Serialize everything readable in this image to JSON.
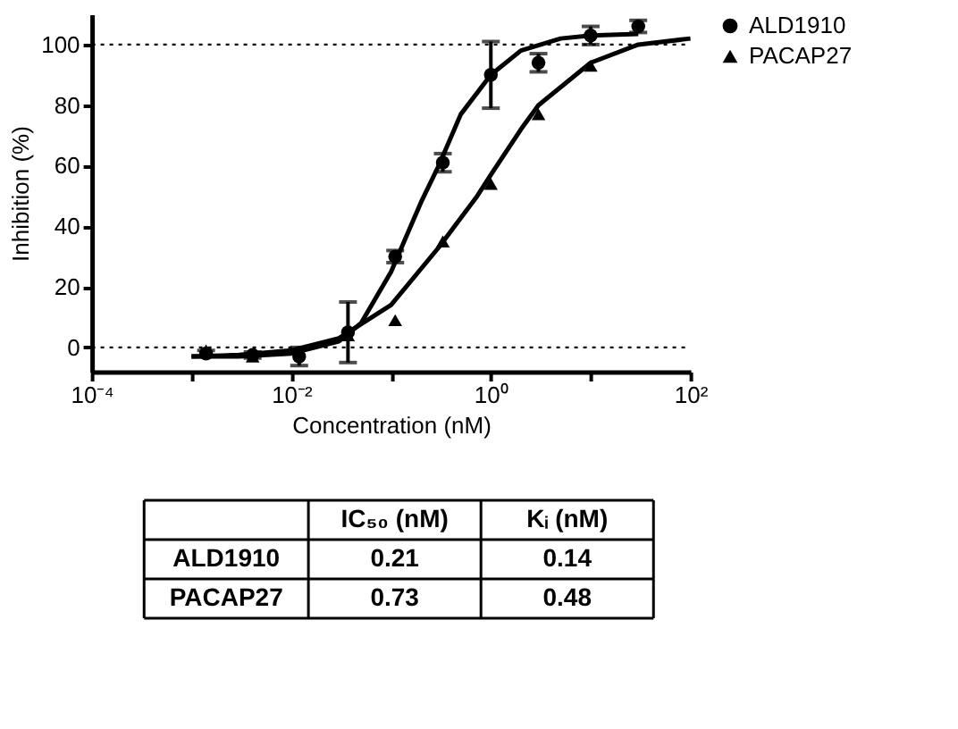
{
  "chart_data": {
    "type": "scatter",
    "xlabel": "Concentration (nM)",
    "ylabel": "Inhibition (%)",
    "log": "x",
    "xlim": [
      0.0001,
      100
    ],
    "xticks": [
      {
        "value": 0.0001,
        "label": "10⁻⁴"
      },
      {
        "value": 0.001,
        "label": null
      },
      {
        "value": 0.01,
        "label": "10⁻²"
      },
      {
        "value": 0.1,
        "label": null
      },
      {
        "value": 1,
        "label": "10⁰"
      },
      {
        "value": 10,
        "label": null
      },
      {
        "value": 100,
        "label": "10²"
      }
    ],
    "ylim": [
      -8,
      110
    ],
    "yticks": [
      0,
      20,
      40,
      60,
      80,
      100
    ],
    "grid": false,
    "legend": "right",
    "series": [
      {
        "name": "ALD1910",
        "marker": "circle",
        "color": "#000000",
        "x": [
          0.0014,
          0.0041,
          0.012,
          0.037,
          0.11,
          0.33,
          1,
          3,
          10,
          30
        ],
        "values": [
          -2,
          -2.5,
          -3,
          5,
          30,
          61,
          90,
          94,
          103,
          106
        ],
        "errors": [
          1,
          1,
          3,
          10,
          2,
          3,
          11,
          3,
          3,
          2
        ]
      },
      {
        "name": "PACAP27",
        "marker": "triangle",
        "color": "#000000",
        "x": [
          0.0014,
          0.0041,
          0.037,
          0.11,
          0.33,
          1,
          3,
          10
        ],
        "values": [
          -1,
          -3,
          4,
          9,
          35,
          54,
          77,
          93
        ]
      },
      {
        "type": "line",
        "color": "#000000",
        "line_style": "solid",
        "x": [
          0.001,
          0.003,
          0.01,
          0.03,
          0.05,
          0.1,
          0.2,
          0.3,
          0.5,
          1,
          2,
          5,
          10,
          30
        ],
        "values": [
          -3,
          -3,
          -2,
          2,
          8,
          25,
          48,
          60,
          77,
          90,
          98,
          102,
          103,
          103.5
        ]
      },
      {
        "type": "line",
        "color": "#000000",
        "line_style": "solid",
        "x": [
          0.001,
          0.003,
          0.01,
          0.03,
          0.1,
          0.3,
          0.73,
          1,
          2,
          3,
          10,
          30,
          100
        ],
        "values": [
          -3,
          -2.5,
          -1,
          3,
          14,
          33,
          50,
          57,
          72,
          80,
          94,
          100,
          102
        ]
      }
    ],
    "ref_lines": [
      {
        "axis": "y",
        "value": 0,
        "line_style": "dotted"
      },
      {
        "axis": "y",
        "value": 100,
        "line_style": "dotted"
      }
    ],
    "annotations": [
      "IC₅₀ (nM)",
      "Kᵢ (nM)",
      "ALD1910",
      "0.21",
      "0.14",
      "PACAP27",
      "0.73",
      "0.48"
    ]
  }
}
